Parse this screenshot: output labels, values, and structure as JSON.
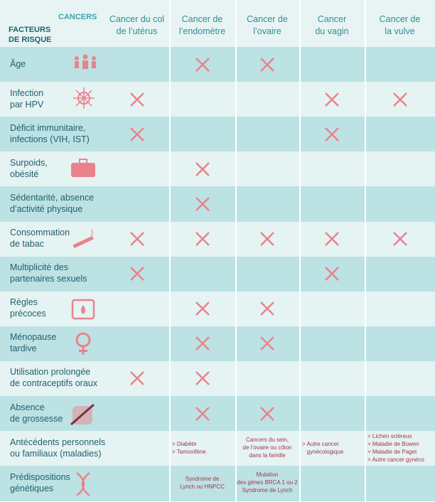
{
  "header": {
    "corner_top": "CANCERS",
    "corner_bottom": [
      "FACTEURS",
      "DE RISQUE"
    ],
    "columns": [
      [
        "Cancer du col",
        "de l’utérus"
      ],
      [
        "Cancer de",
        "l’endomètre"
      ],
      [
        "Cancer de",
        "l’ovaire"
      ],
      [
        "Cancer",
        "du vagin"
      ],
      [
        "Cancer de",
        "la vulve"
      ]
    ]
  },
  "rows": [
    {
      "label": [
        "Âge"
      ],
      "cells": [
        false,
        true,
        true,
        false,
        false
      ]
    },
    {
      "label": [
        "Infection",
        "par HPV"
      ],
      "cells": [
        true,
        false,
        false,
        true,
        true
      ]
    },
    {
      "label": [
        "Déficit immunitaire,",
        "infections (VIH, IST)"
      ],
      "cells": [
        true,
        false,
        false,
        true,
        false
      ]
    },
    {
      "label": [
        "Surpoids,",
        "obésité"
      ],
      "cells": [
        false,
        true,
        false,
        false,
        false
      ]
    },
    {
      "label": [
        "Sédentarité, absence",
        "d’activité physique"
      ],
      "cells": [
        false,
        true,
        false,
        false,
        false
      ]
    },
    {
      "label": [
        "Consommation",
        "de tabac"
      ],
      "cells": [
        true,
        true,
        true,
        true,
        true
      ]
    },
    {
      "label": [
        "Multiplicité des",
        "partenaires sexuels"
      ],
      "cells": [
        true,
        false,
        false,
        true,
        false
      ]
    },
    {
      "label": [
        "Règles",
        "précoces"
      ],
      "cells": [
        false,
        true,
        true,
        false,
        false
      ]
    },
    {
      "label": [
        "Ménopause",
        "tardive"
      ],
      "cells": [
        false,
        true,
        true,
        false,
        false
      ]
    },
    {
      "label": [
        "Utilisation prolongée",
        "de contraceptifs oraux"
      ],
      "cells": [
        true,
        true,
        false,
        false,
        false
      ]
    },
    {
      "label": [
        "Absence",
        "de grossesse"
      ],
      "cells": [
        false,
        true,
        true,
        false,
        false
      ]
    },
    {
      "label": [
        "Antécédents personnels",
        "ou familiaux (maladies)"
      ],
      "cells": [
        false,
        [
          "> Diabète",
          "> Tamoxifène"
        ],
        [
          "Cancers du sein,",
          "de l’ovaire ou côlon",
          "dans la famille"
        ],
        [
          "> Autre cancer",
          "   gynécologique"
        ],
        [
          "> Lichen scléreux",
          "> Maladie de Bowen",
          "> Maladie de Paget",
          "> Autre cancer gynéco"
        ]
      ]
    },
    {
      "label": [
        "Prédispositions",
        "génétiques"
      ],
      "cells": [
        false,
        [
          "Syndrome de",
          "Lynch ou HNPCC"
        ],
        [
          "Mutation",
          "des gènes BRCA 1 ou 2",
          "Syndrome de Lynch"
        ],
        false,
        false
      ]
    }
  ]
}
